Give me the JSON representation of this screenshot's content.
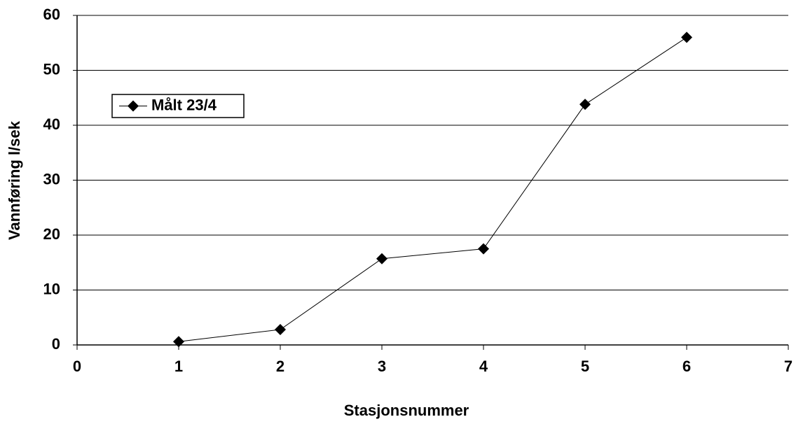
{
  "chart_data": {
    "type": "line",
    "x_label": "Stasjonsnummer",
    "y_label": "Vannføring l/sek",
    "series": [
      {
        "name": "Målt 23/4",
        "color": "#000000",
        "x": [
          1,
          2,
          3,
          4,
          5,
          6
        ],
        "values": [
          0.6,
          2.8,
          15.7,
          17.5,
          43.8,
          56.0
        ]
      }
    ],
    "xlim": [
      0,
      7
    ],
    "xticks": [
      0,
      1,
      2,
      3,
      4,
      5,
      6,
      7
    ],
    "ylim": [
      0,
      60
    ],
    "yticks": [
      0,
      10,
      20,
      30,
      40,
      50,
      60
    ],
    "grid": true,
    "legend": "upper-left"
  }
}
